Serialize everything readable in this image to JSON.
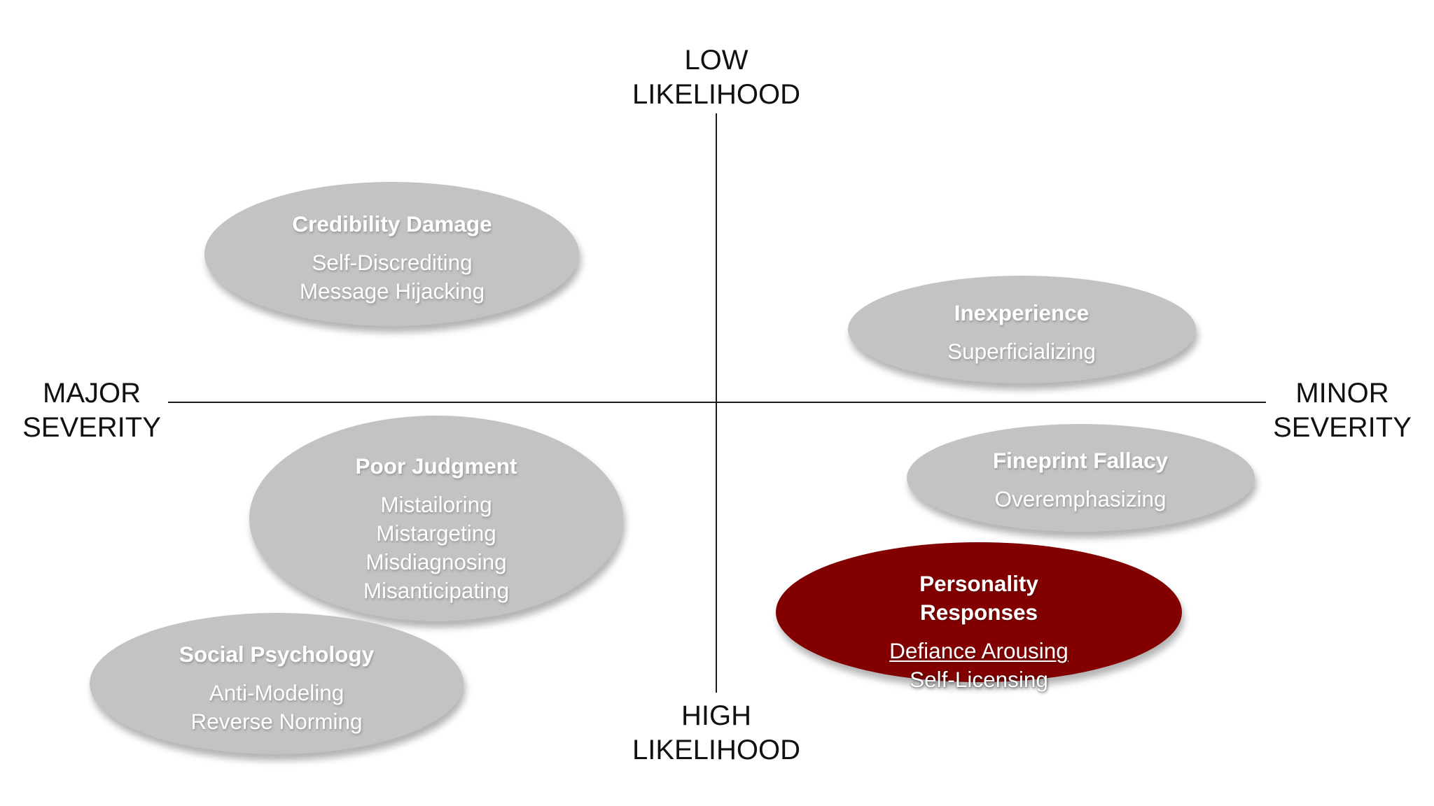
{
  "axes": {
    "top": [
      "LOW",
      "LIKELIHOOD"
    ],
    "bottom": [
      "HIGH",
      "LIKELIHOOD"
    ],
    "left": [
      "MAJOR",
      "SEVERITY"
    ],
    "right": [
      "MINOR",
      "SEVERITY"
    ]
  },
  "groups": {
    "credibility": {
      "title": "Credibility Damage",
      "items": [
        "Self-Discrediting",
        "Message Hijacking"
      ]
    },
    "inexperience": {
      "title": "Inexperience",
      "items": [
        "Superficializing"
      ]
    },
    "poor_judgment": {
      "title": "Poor Judgment",
      "items": [
        "Mistailoring",
        "Mistargeting",
        "Misdiagnosing",
        "Misanticipating"
      ]
    },
    "fineprint": {
      "title": "Fineprint Fallacy",
      "items": [
        "Overemphasizing"
      ]
    },
    "personality": {
      "title_lines": [
        "Personality",
        "Responses"
      ],
      "items": [
        "Defiance Arousing",
        "Self-Licensing"
      ]
    },
    "social": {
      "title": "Social Psychology",
      "items": [
        "Anti-Modeling",
        "Reverse Norming"
      ]
    }
  },
  "colors": {
    "ellipse": "#c3c3c3",
    "highlight": "#820000",
    "text": "#ffffff",
    "axis": "#1a1a1a"
  }
}
